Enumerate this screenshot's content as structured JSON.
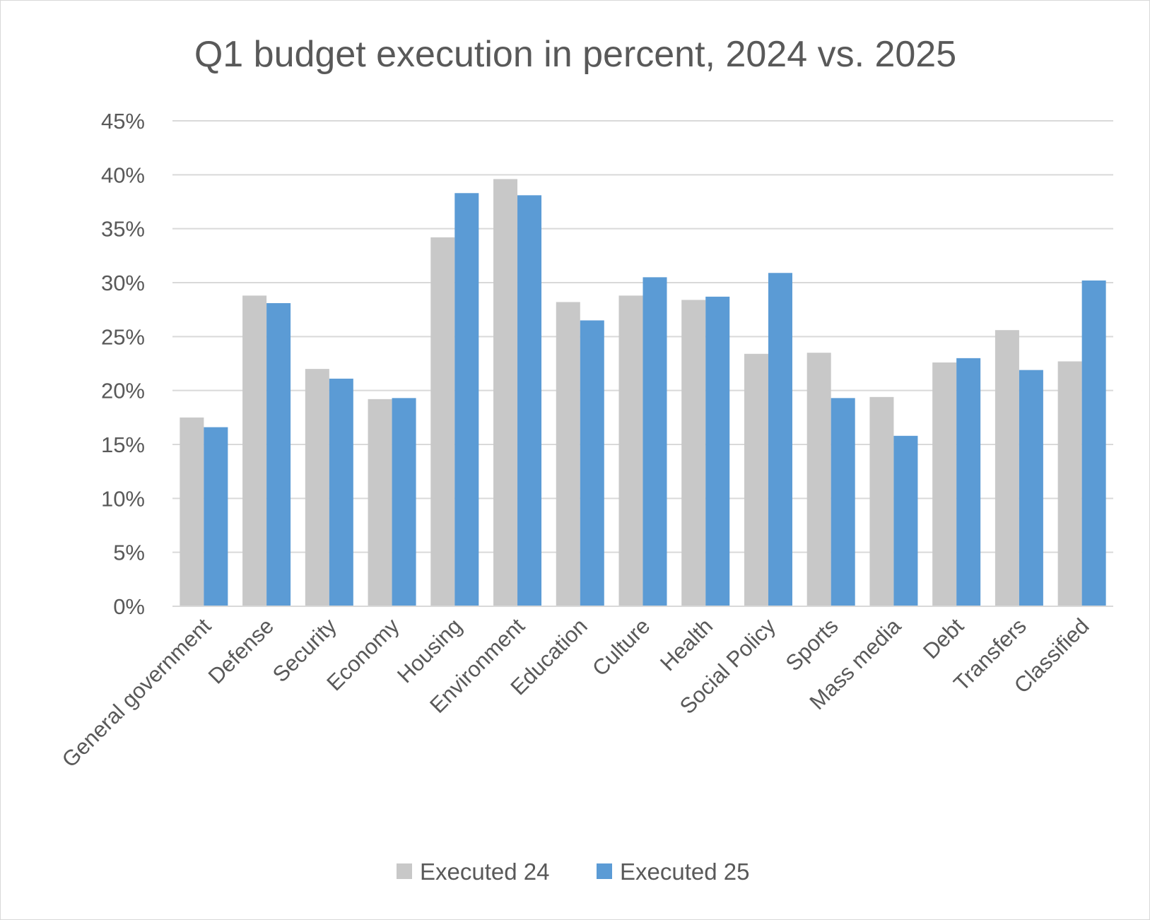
{
  "chart_data": {
    "type": "bar",
    "title": "Q1 budget execution in percent, 2024 vs. 2025",
    "xlabel": "",
    "ylabel": "",
    "categories": [
      "General government",
      "Defense",
      "Security",
      "Economy",
      "Housing",
      "Environment",
      "Education",
      "Culture",
      "Health",
      "Social Policy",
      "Sports",
      "Mass media",
      "Debt",
      "Transfers",
      "Classified"
    ],
    "series": [
      {
        "name": "Executed 24",
        "color": "#c8c8c8",
        "values": [
          17.5,
          28.8,
          22.0,
          19.2,
          34.2,
          39.6,
          28.2,
          28.8,
          28.4,
          23.4,
          23.5,
          19.4,
          22.6,
          25.6,
          22.7
        ]
      },
      {
        "name": "Executed 25",
        "color": "#5b9bd5",
        "values": [
          16.6,
          28.1,
          21.1,
          19.3,
          38.3,
          38.1,
          26.5,
          30.5,
          28.7,
          30.9,
          19.3,
          15.8,
          23.0,
          21.9,
          30.2
        ]
      }
    ],
    "ylim": [
      0,
      45
    ],
    "yticks": [
      0,
      5,
      10,
      15,
      20,
      25,
      30,
      35,
      40,
      45
    ],
    "ytick_labels": [
      "0%",
      "5%",
      "10%",
      "15%",
      "20%",
      "25%",
      "30%",
      "35%",
      "40%",
      "45%"
    ],
    "grid": true,
    "legend": "bottom"
  }
}
